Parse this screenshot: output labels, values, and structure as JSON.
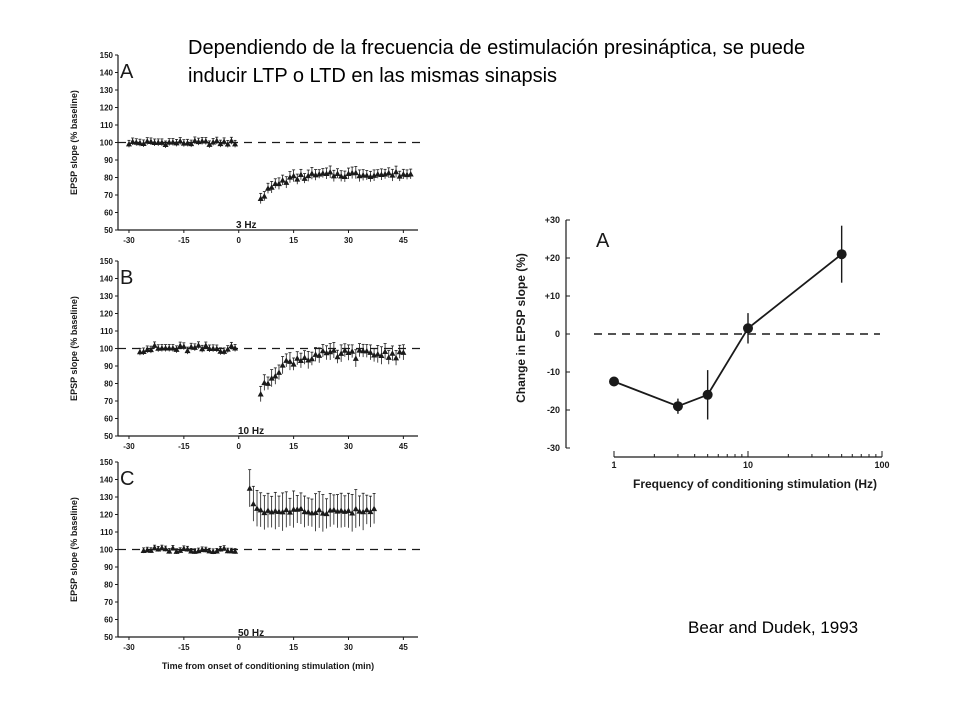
{
  "heading": {
    "line1": "Dependiendo de la frecuencia de estimulación presináptica, se puede",
    "line2": "inducir LTP o LTD en las mismas sinapsis"
  },
  "citation": "Bear and Dudek, 1993",
  "colors": {
    "ink": "#1a1a1a",
    "background": "#ffffff"
  },
  "chart_data": [
    {
      "type": "scatter",
      "panel_label": "A",
      "condition_label": "3 Hz",
      "ylabel": "EPSP slope (% baseline)",
      "xlabel": "",
      "xlim": [
        -33,
        49
      ],
      "ylim": [
        50,
        150
      ],
      "x_ticks": [
        "-30",
        "-15",
        "0",
        "15",
        "30",
        "45"
      ],
      "y_ticks": [
        "50",
        "60",
        "70",
        "80",
        "90",
        "100",
        "110",
        "120",
        "130",
        "140",
        "150"
      ],
      "reference_line": 100,
      "grid": false,
      "markers": "triangle with error bars",
      "baseline": {
        "x_start": -30,
        "x_end": -1,
        "y": 100,
        "jitter": 1.2,
        "err": 2
      },
      "post": {
        "x_start": 6,
        "x_end": 47,
        "y_start": 68,
        "y_plateau": 82,
        "tau": 5,
        "jitter": 1.5,
        "err": 3.5
      }
    },
    {
      "type": "scatter",
      "panel_label": "B",
      "condition_label": "10 Hz",
      "ylabel": "EPSP slope (% baseline)",
      "xlabel": "",
      "xlim": [
        -33,
        49
      ],
      "ylim": [
        50,
        150
      ],
      "x_ticks": [
        "-30",
        "-15",
        "0",
        "15",
        "30",
        "45"
      ],
      "y_ticks": [
        "50",
        "60",
        "70",
        "80",
        "90",
        "100",
        "110",
        "120",
        "130",
        "140",
        "150"
      ],
      "reference_line": 100,
      "grid": false,
      "markers": "triangle with error bars",
      "baseline": {
        "x_start": -27,
        "x_end": -1,
        "y": 100,
        "jitter": 2,
        "err": 2
      },
      "post": {
        "x_start": 6,
        "x_end": 45,
        "y_start": 74,
        "y_plateau": 97,
        "tau": 5,
        "jitter": 2.5,
        "err": 5
      }
    },
    {
      "type": "scatter",
      "panel_label": "C",
      "condition_label": "50 Hz",
      "ylabel": "EPSP slope (% baseline)",
      "xlabel": "Time from onset of conditioning stimulation (min)",
      "xlim": [
        -33,
        49
      ],
      "ylim": [
        50,
        150
      ],
      "x_ticks": [
        "-30",
        "-15",
        "0",
        "15",
        "30",
        "45"
      ],
      "y_ticks": [
        "50",
        "60",
        "70",
        "80",
        "90",
        "100",
        "110",
        "120",
        "130",
        "140",
        "150"
      ],
      "reference_line": 100,
      "grid": false,
      "markers": "triangle with error bars",
      "baseline": {
        "x_start": -26,
        "x_end": -1,
        "y": 100,
        "jitter": 1.2,
        "err": 1.5
      },
      "post": {
        "x_start": 3,
        "x_end": 37,
        "y_start": 135,
        "y_plateau": 122,
        "tau": 1,
        "jitter": 1.5,
        "err": 11
      }
    },
    {
      "type": "line",
      "panel_label": "A",
      "title": "",
      "xlabel": "Frequency of conditioning stimulation (Hz)",
      "ylabel": "Change in EPSP slope (%)",
      "x_scale": "log",
      "xlim": [
        1,
        100
      ],
      "ylim": [
        -30,
        30
      ],
      "x_ticks": [
        "1",
        "10",
        "100"
      ],
      "y_ticks": [
        "+30",
        "+20",
        "+10",
        "0",
        "-10",
        "-20",
        "-30"
      ],
      "reference_line": 0,
      "grid": false,
      "x": [
        1,
        3,
        5,
        10,
        50
      ],
      "y": [
        -12.5,
        -19,
        -16,
        1.5,
        21
      ],
      "err": [
        0,
        2,
        6.5,
        4,
        7.5
      ]
    }
  ]
}
